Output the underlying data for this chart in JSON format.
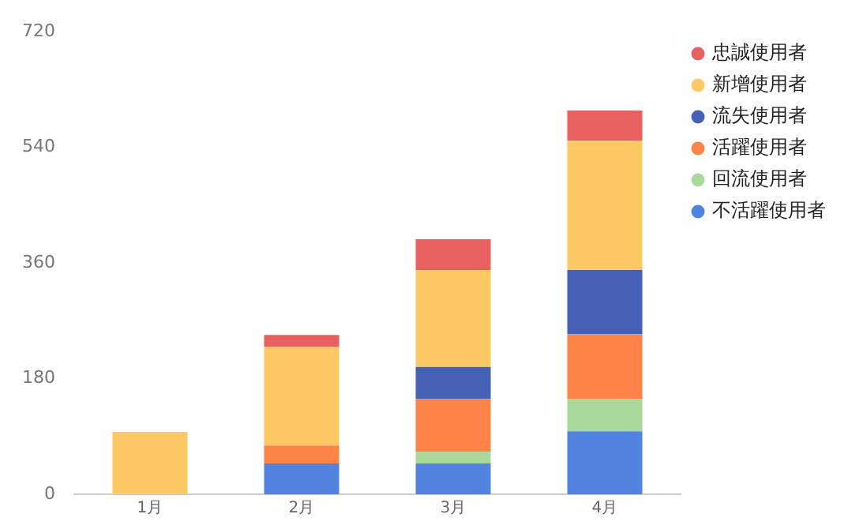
{
  "chart_data": {
    "type": "bar",
    "stacked": true,
    "categories": [
      "1月",
      "2月",
      "3月",
      "4月"
    ],
    "series": [
      {
        "name": "不活躍使用者",
        "color": "#5184e0",
        "values": [
          null,
          48,
          48,
          98
        ]
      },
      {
        "name": "回流使用者",
        "color": "#a8d99a",
        "values": [
          null,
          null,
          18,
          50
        ]
      },
      {
        "name": "活躍使用者",
        "color": "#fd8446",
        "values": [
          null,
          28,
          82,
          101
        ]
      },
      {
        "name": "流失使用者",
        "color": "#4660b5",
        "values": [
          null,
          null,
          50,
          100
        ]
      },
      {
        "name": "新增使用者",
        "color": "#fec865",
        "values": [
          97,
          153,
          151,
          201
        ]
      },
      {
        "name": "忠誠使用者",
        "color": "#e8605f",
        "values": [
          null,
          19,
          48,
          47
        ]
      }
    ],
    "ylim": [
      0,
      720
    ],
    "yticks": [
      0,
      180,
      360,
      540,
      720
    ],
    "grid": false,
    "legend": "top right"
  }
}
